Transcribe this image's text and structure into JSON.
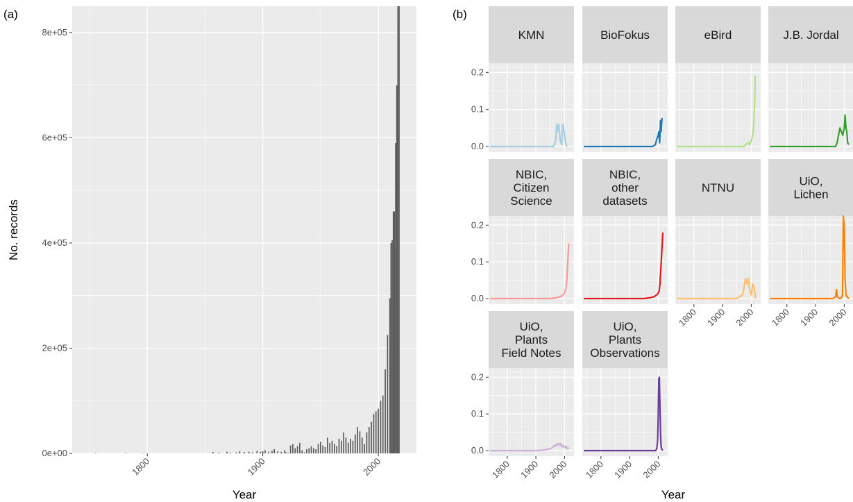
{
  "panel_a_label": "(a)",
  "panel_b_label": "(b)",
  "colors": {
    "panel_bg": "#ebebeb",
    "grid": "#ffffff",
    "strip_bg": "#d9d9d9",
    "bar": "#595959",
    "tick_text": "#4d4d4d",
    "title_text": "#000000"
  },
  "chart_data": [
    {
      "type": "bar",
      "panel": "(a)",
      "title": "",
      "xlabel": "Year",
      "ylabel": "No. records",
      "xlim": [
        1735,
        2033
      ],
      "ylim": [
        0,
        850000
      ],
      "x_ticks": [
        1800,
        1900,
        2000
      ],
      "x_tick_labels": [
        "1800",
        "1900",
        "2000"
      ],
      "y_ticks": [
        0,
        200000,
        400000,
        600000,
        800000
      ],
      "y_tick_labels": [
        "0e+00",
        "2e+05",
        "4e+05",
        "6e+05",
        "8e+05"
      ],
      "grid": true,
      "x": [
        1755,
        1781,
        1797,
        1857,
        1862,
        1869,
        1872,
        1877,
        1880,
        1884,
        1888,
        1891,
        1895,
        1898,
        1900,
        1902,
        1905,
        1908,
        1910,
        1913,
        1916,
        1919,
        1920,
        1922,
        1924,
        1926,
        1928,
        1930,
        1932,
        1934,
        1936,
        1938,
        1940,
        1942,
        1944,
        1946,
        1948,
        1950,
        1952,
        1954,
        1956,
        1958,
        1960,
        1962,
        1964,
        1966,
        1968,
        1970,
        1972,
        1974,
        1976,
        1978,
        1980,
        1982,
        1984,
        1986,
        1988,
        1990,
        1992,
        1994,
        1996,
        1998,
        2000,
        2002,
        2004,
        2006,
        2008,
        2010,
        2011,
        2012,
        2013,
        2014,
        2015,
        2016,
        2017,
        2018
      ],
      "values": [
        800,
        1000,
        700,
        2500,
        1800,
        3000,
        1500,
        2000,
        4000,
        2500,
        3000,
        2000,
        5000,
        3000,
        4000,
        6000,
        3000,
        5000,
        8000,
        4000,
        3000,
        6000,
        2000,
        1000,
        15000,
        18000,
        10000,
        14000,
        20000,
        6000,
        2000,
        8000,
        10000,
        14000,
        10000,
        8000,
        18000,
        22000,
        15000,
        12000,
        30000,
        20000,
        24000,
        18000,
        14000,
        28000,
        24000,
        40000,
        30000,
        20000,
        28000,
        24000,
        36000,
        50000,
        42000,
        30000,
        18000,
        40000,
        50000,
        60000,
        75000,
        80000,
        85000,
        100000,
        110000,
        160000,
        225000,
        295000,
        400000,
        405000,
        460000,
        460000,
        590000,
        700000,
        850000,
        850000
      ]
    },
    {
      "type": "line",
      "panel": "(b)",
      "title": "",
      "xlabel": "Year",
      "ylabel": "",
      "xlim": [
        1735,
        2033
      ],
      "ylim": [
        0,
        0.21
      ],
      "x_ticks": [
        1800,
        1900,
        2000
      ],
      "x_tick_labels": [
        "1800",
        "1900",
        "2000"
      ],
      "y_ticks": [
        0,
        0.1,
        0.2
      ],
      "y_tick_labels": [
        "0.0",
        "0.1",
        "0.2"
      ],
      "grid": true,
      "facets": [
        {
          "name": "KMN",
          "color": "#a6cee3",
          "x": [
            1740,
            1960,
            1965,
            1970,
            1972,
            1975,
            1980,
            1985,
            1990,
            1993,
            1995,
            2000,
            2005,
            2010
          ],
          "y": [
            0,
            0,
            0.005,
            0.02,
            0.06,
            0.04,
            0.06,
            0.015,
            0.005,
            0.06,
            0.06,
            0.03,
            0.005,
            0
          ]
        },
        {
          "name": "BioFokus",
          "color": "#1f78b4",
          "x": [
            1740,
            1980,
            1990,
            1995,
            2000,
            2002,
            2005,
            2008,
            2010,
            2013,
            2016
          ],
          "y": [
            0,
            0,
            0.005,
            0.02,
            0.03,
            0.04,
            0.01,
            0.07,
            0.04,
            0.075,
            0.075
          ]
        },
        {
          "name": "eBird",
          "color": "#b2df8a",
          "x": [
            1740,
            1975,
            1980,
            1990,
            1995,
            2000,
            2005,
            2008,
            2010,
            2012,
            2014,
            2016
          ],
          "y": [
            0,
            0,
            0.005,
            0.01,
            0.005,
            0.015,
            0.03,
            0.05,
            0.08,
            0.12,
            0.19,
            0.19
          ]
        },
        {
          "name": "J.B. Jordal",
          "color": "#33a02c",
          "x": [
            1740,
            1970,
            1975,
            1980,
            1985,
            1990,
            1995,
            2000,
            2003,
            2006,
            2009,
            2012,
            2016
          ],
          "y": [
            0,
            0,
            0.01,
            0.03,
            0.05,
            0.04,
            0.03,
            0.05,
            0.085,
            0.05,
            0.04,
            0.01,
            0.005
          ]
        },
        {
          "name": "NBIC,\nCitizen\nScience",
          "color": "#fb9a99",
          "x": [
            1740,
            1950,
            1970,
            1985,
            1995,
            2000,
            2005,
            2008,
            2010,
            2012,
            2014,
            2016
          ],
          "y": [
            0,
            0,
            0.002,
            0.005,
            0.01,
            0.015,
            0.03,
            0.05,
            0.08,
            0.11,
            0.14,
            0.15
          ]
        },
        {
          "name": "NBIC,\nother\ndatasets",
          "color": "#e31a1c",
          "x": [
            1740,
            1950,
            1970,
            1985,
            1995,
            2000,
            2003,
            2006,
            2009,
            2012,
            2016
          ],
          "y": [
            0,
            0,
            0.002,
            0.005,
            0.01,
            0.015,
            0.02,
            0.04,
            0.08,
            0.12,
            0.18
          ]
        },
        {
          "name": "NTNU",
          "color": "#fdbf6f",
          "x": [
            1740,
            1950,
            1960,
            1970,
            1975,
            1980,
            1985,
            1990,
            1995,
            2000,
            2005,
            2010,
            2015
          ],
          "y": [
            0,
            0,
            0.005,
            0.01,
            0.03,
            0.055,
            0.04,
            0.055,
            0.02,
            0.01,
            0.04,
            0.03,
            0
          ]
        },
        {
          "name": "UiO,\nLichen",
          "color": "#ff7f00",
          "x": [
            1740,
            1960,
            1970,
            1973,
            1976,
            1980,
            1985,
            1990,
            1994,
            1997,
            2000,
            2003,
            2006,
            2010,
            2016
          ],
          "y": [
            0,
            0,
            0.005,
            0.025,
            0.005,
            0.002,
            0,
            0.002,
            0.01,
            0.3,
            0.2,
            0.05,
            0.01,
            0.005,
            0
          ]
        },
        {
          "name": "UiO,\nPlants\nField Notes",
          "color": "#cab2d6",
          "x": [
            1740,
            1900,
            1920,
            1940,
            1950,
            1960,
            1965,
            1970,
            1975,
            1980,
            1985,
            1990,
            1995,
            2000,
            2005,
            2010,
            2015
          ],
          "y": [
            0,
            0,
            0.001,
            0.003,
            0.005,
            0.01,
            0.015,
            0.012,
            0.02,
            0.015,
            0.02,
            0.01,
            0.015,
            0.008,
            0.012,
            0.005,
            0.008
          ]
        },
        {
          "name": "UiO,\nPlants\nObservations",
          "color": "#6a3d9a",
          "x": [
            1740,
            1990,
            1995,
            1998,
            2000,
            2002,
            2004,
            2006,
            2008,
            2010,
            2015
          ],
          "y": [
            0,
            0,
            0.005,
            0.03,
            0.1,
            0.195,
            0.2,
            0.12,
            0.05,
            0.01,
            0
          ]
        }
      ]
    }
  ]
}
